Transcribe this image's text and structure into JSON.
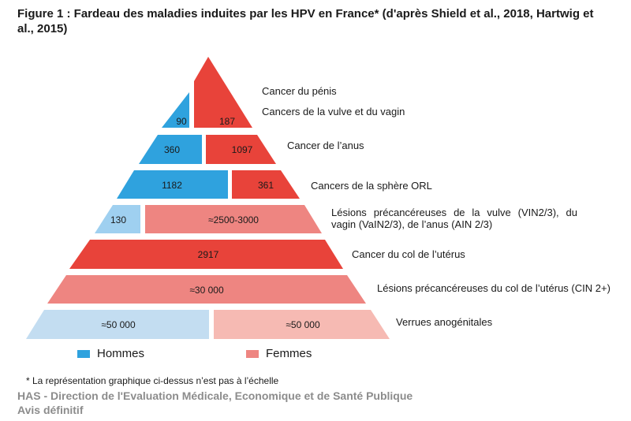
{
  "title": "Figure 1 : Fardeau des maladies induites par les HPV en France* (d'après Shield et al., 2018, Hartwig et al., 2015)",
  "colors": {
    "hommes": "#2fa2de",
    "hommes_light": "#9fd0f0",
    "hommes_pale": "#c3ddf1",
    "femmes": "#e8433a",
    "femmes_light": "#ee8581",
    "femmes_pale": "#f6bab3"
  },
  "levels": [
    {
      "label": "Cancer du pénis",
      "label2": "Cancers de la vulve et du vagin",
      "hommes": "90",
      "femmes": "187"
    },
    {
      "label": "Cancer de l’anus",
      "hommes": "360",
      "femmes": "1097"
    },
    {
      "label": "Cancers de la sphère ORL",
      "hommes": "1182",
      "femmes": "361"
    },
    {
      "label": "Lésions précancéreuses de la vulve (VIN2/3), du vagin (VaIN2/3), de l’anus (AIN 2/3)",
      "hommes": "130",
      "femmes": "≈2500-3000"
    },
    {
      "label": "Cancer du col de l’utérus",
      "femmes": "2917"
    },
    {
      "label": "Lésions précancéreuses du col de l’utérus (CIN 2+)",
      "femmes": "≈30 000"
    },
    {
      "label": "Verrues anogénitales",
      "hommes": "≈50 000",
      "femmes": "≈50 000"
    }
  ],
  "legend": {
    "hommes": "Hommes",
    "femmes": "Femmes"
  },
  "footnote": "* La représentation graphique ci-dessus n’est pas à l’échelle",
  "footer": {
    "line1": "HAS - Direction de l'Evaluation Médicale, Economique et de Santé Publique",
    "line2": "Avis définitif"
  }
}
